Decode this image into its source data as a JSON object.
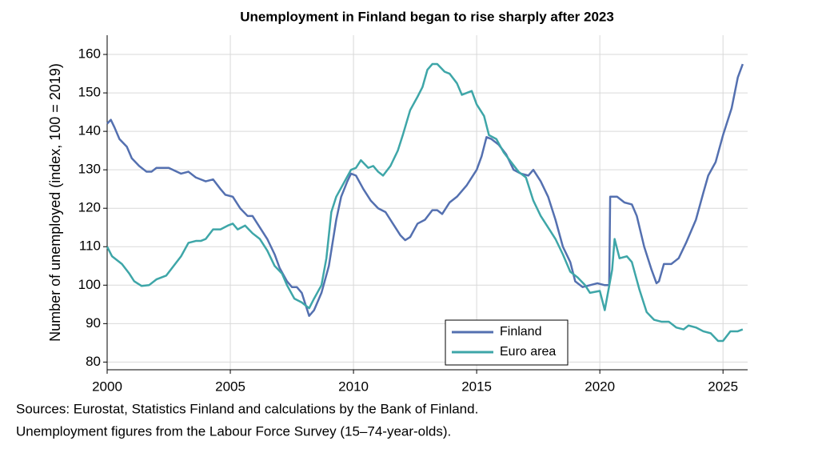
{
  "chart_data": {
    "type": "line",
    "title": "Unemployment in Finland began to rise sharply after 2023",
    "y_label": "Number of unemployed (index, 100 = 2019)",
    "footnotes": [
      "Sources: Eurostat, Statistics Finland and calculations by the Bank of Finland.",
      "Unemployment figures from the Labour Force Survey (15–74-year-olds)."
    ],
    "xlim": [
      2000,
      2026
    ],
    "xticks": [
      2000,
      2005,
      2010,
      2015,
      2020,
      2025
    ],
    "ylim": [
      78,
      165
    ],
    "yticks": [
      80,
      90,
      100,
      110,
      120,
      130,
      140,
      150,
      160
    ],
    "grid": true,
    "legend": "lower right",
    "series": [
      {
        "name": "Finland",
        "color": "#5470b0",
        "x": [
          2000.0,
          2000.15,
          2000.3,
          2000.5,
          2000.8,
          2001.0,
          2001.3,
          2001.6,
          2001.8,
          2002.0,
          2002.5,
          2003.0,
          2003.3,
          2003.6,
          2004.0,
          2004.3,
          2004.6,
          2004.8,
          2005.1,
          2005.4,
          2005.7,
          2005.9,
          2006.1,
          2006.5,
          2006.8,
          2007.0,
          2007.3,
          2007.5,
          2007.7,
          2007.9,
          2008.2,
          2008.4,
          2008.7,
          2009.0,
          2009.3,
          2009.5,
          2009.75,
          2009.9,
          2010.1,
          2010.4,
          2010.7,
          2011.0,
          2011.3,
          2011.6,
          2011.9,
          2012.1,
          2012.3,
          2012.6,
          2012.9,
          2013.2,
          2013.4,
          2013.6,
          2013.9,
          2014.2,
          2014.6,
          2015.0,
          2015.2,
          2015.4,
          2015.6,
          2015.9,
          2016.2,
          2016.5,
          2016.8,
          2017.1,
          2017.3,
          2017.6,
          2017.9,
          2018.2,
          2018.5,
          2018.8,
          2019.0,
          2019.3,
          2019.6,
          2019.9,
          2020.2,
          2020.38,
          2020.42,
          2020.7,
          2021.0,
          2021.3,
          2021.5,
          2021.8,
          2022.1,
          2022.3,
          2022.4,
          2022.6,
          2022.9,
          2023.1,
          2023.2,
          2023.5,
          2023.9,
          2024.2,
          2024.4,
          2024.7,
          2025.0,
          2025.35,
          2025.6,
          2025.8
        ],
        "values": [
          142,
          143,
          141,
          138,
          136,
          133,
          131,
          129.5,
          129.5,
          130.5,
          130.5,
          129,
          129.5,
          128,
          127,
          127.5,
          125,
          123.5,
          123,
          120,
          118,
          118,
          116,
          112,
          108,
          104.5,
          101,
          99.5,
          99.5,
          98,
          92,
          93.5,
          98,
          105,
          117,
          123,
          127,
          129,
          128.5,
          125,
          122,
          120,
          119,
          116,
          113,
          111.7,
          112.5,
          116,
          117,
          119.5,
          119.5,
          118.5,
          121.5,
          123,
          126,
          130,
          133.5,
          138.5,
          138,
          136.5,
          134,
          130,
          129,
          128.5,
          130,
          127,
          123,
          117,
          110,
          106,
          101,
          99.5,
          100,
          100.5,
          100,
          100,
          123,
          123,
          121.5,
          121,
          118,
          110,
          104,
          100.5,
          101,
          105.5,
          105.5,
          106.5,
          107,
          111,
          117,
          124,
          128.5,
          132,
          139,
          146,
          154,
          157.5
        ]
      },
      {
        "name": "Euro area",
        "color": "#3ea6a8",
        "x": [
          2000.0,
          2000.2,
          2000.6,
          2000.9,
          2001.1,
          2001.4,
          2001.7,
          2002.0,
          2002.4,
          2002.7,
          2003.0,
          2003.3,
          2003.6,
          2003.8,
          2004.0,
          2004.3,
          2004.6,
          2004.9,
          2005.1,
          2005.3,
          2005.6,
          2005.9,
          2006.2,
          2006.5,
          2006.8,
          2007.1,
          2007.3,
          2007.6,
          2007.9,
          2008.2,
          2008.4,
          2008.7,
          2008.9,
          2009.1,
          2009.3,
          2009.6,
          2009.9,
          2010.1,
          2010.3,
          2010.6,
          2010.8,
          2011.0,
          2011.2,
          2011.5,
          2011.8,
          2012.0,
          2012.3,
          2012.6,
          2012.8,
          2013.0,
          2013.2,
          2013.4,
          2013.7,
          2013.9,
          2014.2,
          2014.4,
          2014.6,
          2014.8,
          2015.0,
          2015.3,
          2015.5,
          2015.8,
          2016.1,
          2016.4,
          2016.7,
          2017.0,
          2017.3,
          2017.6,
          2017.9,
          2018.2,
          2018.5,
          2018.8,
          2019.1,
          2019.4,
          2019.6,
          2020.0,
          2020.2,
          2020.5,
          2020.6,
          2020.8,
          2021.1,
          2021.3,
          2021.6,
          2021.9,
          2022.2,
          2022.5,
          2022.8,
          2023.1,
          2023.4,
          2023.6,
          2023.9,
          2024.2,
          2024.5,
          2024.8,
          2025.0,
          2025.3,
          2025.6,
          2025.8
        ],
        "values": [
          110,
          107.5,
          105.5,
          103,
          101,
          99.8,
          100,
          101.5,
          102.5,
          105,
          107.5,
          111,
          111.5,
          111.5,
          112,
          114.5,
          114.5,
          115.5,
          116,
          114.5,
          115.5,
          113.5,
          112,
          109,
          105,
          103,
          100,
          96.5,
          95.5,
          94,
          96.5,
          100,
          107,
          119,
          123,
          126.5,
          130,
          130.5,
          132.5,
          130.5,
          131,
          129.5,
          128.5,
          131,
          135,
          139,
          145.5,
          149,
          151.5,
          156,
          157.5,
          157.5,
          155.5,
          155,
          152.5,
          149.5,
          150,
          150.5,
          147,
          144,
          139,
          138,
          134.5,
          132,
          129.5,
          128,
          122,
          118,
          115,
          112,
          108,
          103.5,
          102,
          100,
          98,
          98.5,
          93.5,
          104,
          112,
          107,
          107.5,
          106,
          99,
          93,
          91,
          90.5,
          90.5,
          89,
          88.5,
          89.5,
          89,
          88,
          87.5,
          85.5,
          85.5,
          88,
          88,
          88.5
        ]
      }
    ]
  }
}
